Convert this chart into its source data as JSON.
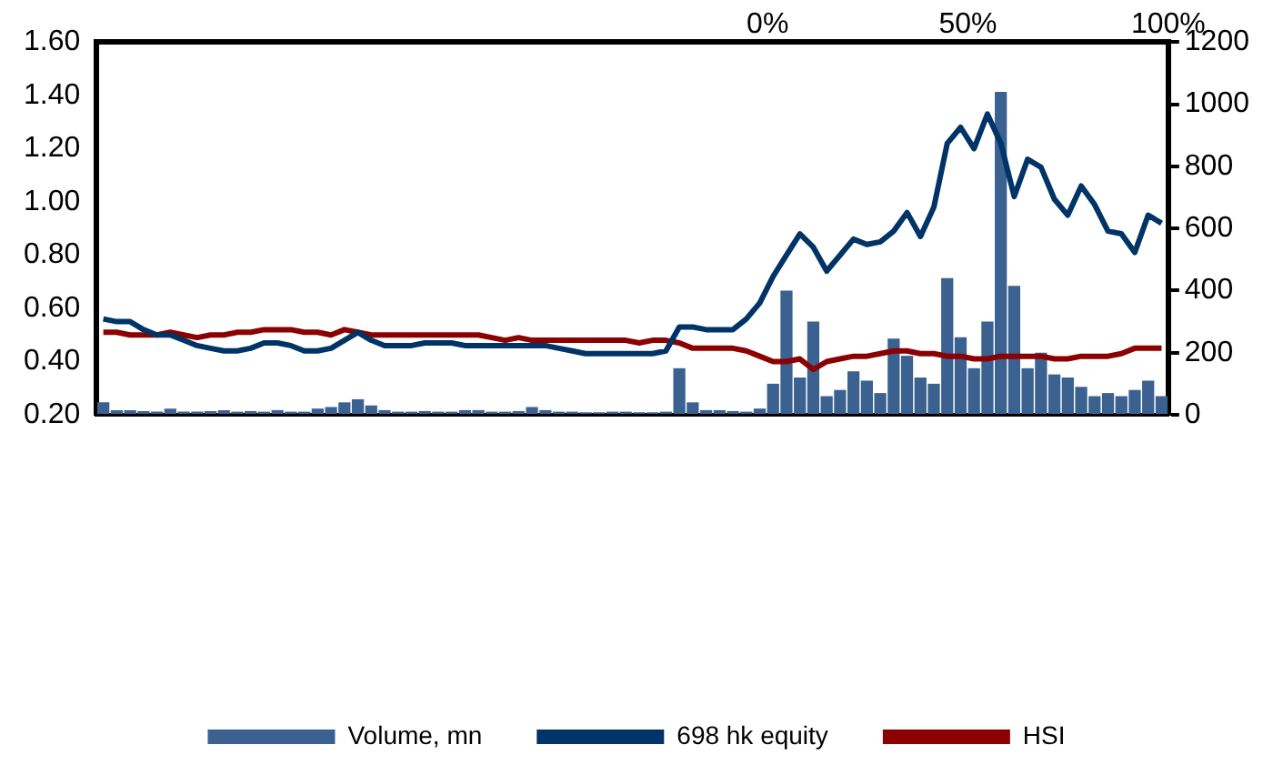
{
  "chart_data": {
    "type": "line",
    "categories": [
      null,
      null,
      null,
      null,
      null,
      null,
      null,
      null,
      null,
      null,
      null,
      null,
      null,
      null,
      null,
      null,
      null,
      null,
      null,
      null,
      null,
      null,
      null,
      null,
      null,
      null,
      null,
      null,
      null,
      null,
      null,
      null,
      null,
      null,
      null,
      null,
      null,
      null,
      null,
      null,
      null,
      null,
      null,
      null,
      null,
      null,
      null,
      null,
      null,
      null,
      null,
      null,
      null,
      null,
      null,
      null,
      null,
      null,
      null,
      null,
      null,
      null,
      null,
      null,
      null,
      null,
      null,
      null,
      null,
      null,
      null,
      null,
      null,
      null,
      null,
      null,
      null,
      null,
      null,
      null
    ],
    "series": [
      {
        "name": "Volume, mn",
        "type": "bar",
        "axis": "y2",
        "color": "#3a6190",
        "values": [
          40,
          15,
          15,
          12,
          10,
          20,
          10,
          10,
          12,
          15,
          10,
          12,
          10,
          15,
          10,
          10,
          20,
          25,
          40,
          50,
          30,
          15,
          10,
          10,
          12,
          10,
          10,
          15,
          15,
          10,
          10,
          12,
          25,
          15,
          10,
          10,
          8,
          8,
          10,
          10,
          8,
          8,
          10,
          150,
          40,
          15,
          15,
          12,
          10,
          20,
          100,
          400,
          120,
          300,
          60,
          80,
          140,
          110,
          70,
          245,
          190,
          120,
          100,
          440,
          250,
          150,
          300,
          1040,
          415,
          150,
          200,
          130,
          120,
          90,
          60,
          70,
          60,
          80,
          110,
          60
        ]
      },
      {
        "name": "698 hk equity",
        "color": "#003366",
        "values": [
          0.56,
          0.55,
          0.55,
          0.52,
          0.5,
          0.5,
          0.48,
          0.46,
          0.45,
          0.44,
          0.44,
          0.45,
          0.47,
          0.47,
          0.46,
          0.44,
          0.44,
          0.45,
          0.48,
          0.51,
          0.48,
          0.46,
          0.46,
          0.46,
          0.47,
          0.47,
          0.47,
          0.46,
          0.46,
          0.46,
          0.46,
          0.46,
          0.46,
          0.46,
          0.45,
          0.44,
          0.43,
          0.43,
          0.43,
          0.43,
          0.43,
          0.43,
          0.44,
          0.53,
          0.53,
          0.52,
          0.52,
          0.52,
          0.56,
          0.62,
          0.72,
          0.8,
          0.88,
          0.83,
          0.74,
          0.8,
          0.86,
          0.84,
          0.85,
          0.89,
          0.96,
          0.87,
          0.98,
          1.22,
          1.28,
          1.2,
          1.33,
          1.22,
          1.02,
          1.16,
          1.13,
          1.01,
          0.95,
          1.06,
          0.99,
          0.89,
          0.88,
          0.81,
          0.95,
          0.92
        ]
      },
      {
        "name": "HSI",
        "color": "#8b0000",
        "values": [
          0.51,
          0.51,
          0.5,
          0.5,
          0.5,
          0.51,
          0.5,
          0.49,
          0.5,
          0.5,
          0.51,
          0.51,
          0.52,
          0.52,
          0.52,
          0.51,
          0.51,
          0.5,
          0.52,
          0.51,
          0.5,
          0.5,
          0.5,
          0.5,
          0.5,
          0.5,
          0.5,
          0.5,
          0.5,
          0.49,
          0.48,
          0.49,
          0.48,
          0.48,
          0.48,
          0.48,
          0.48,
          0.48,
          0.48,
          0.48,
          0.47,
          0.48,
          0.48,
          0.47,
          0.45,
          0.45,
          0.45,
          0.45,
          0.44,
          0.42,
          0.4,
          0.4,
          0.41,
          0.37,
          0.4,
          0.41,
          0.42,
          0.42,
          0.43,
          0.44,
          0.44,
          0.43,
          0.43,
          0.42,
          0.42,
          0.41,
          0.41,
          0.42,
          0.42,
          0.42,
          0.42,
          0.41,
          0.41,
          0.42,
          0.42,
          0.42,
          0.43,
          0.45,
          0.45,
          0.45
        ]
      }
    ],
    "ylim": [
      0.2,
      1.6
    ],
    "yticks": [
      {
        "value": 0.2,
        "label": "0.20"
      },
      {
        "value": 0.4,
        "label": "0.40"
      },
      {
        "value": 0.6,
        "label": "0.60"
      },
      {
        "value": 0.8,
        "label": "0.80"
      },
      {
        "value": 1.0,
        "label": "1.00"
      },
      {
        "value": 1.2,
        "label": "1.20"
      },
      {
        "value": 1.4,
        "label": "1.40"
      },
      {
        "value": 1.6,
        "label": "1.60"
      }
    ],
    "y2lim": [
      0,
      1200
    ],
    "y2ticks": [
      0,
      200,
      400,
      600,
      800,
      1000,
      1200
    ],
    "x2lim": [
      -167.5,
      100
    ],
    "x2ticks": [
      {
        "value": 0,
        "label": "0%"
      },
      {
        "value": 50,
        "label": "50%"
      },
      {
        "value": 100,
        "label": "100%"
      }
    ],
    "grid": false,
    "legend": "bottom",
    "marker": "none",
    "line_style": "solid"
  }
}
